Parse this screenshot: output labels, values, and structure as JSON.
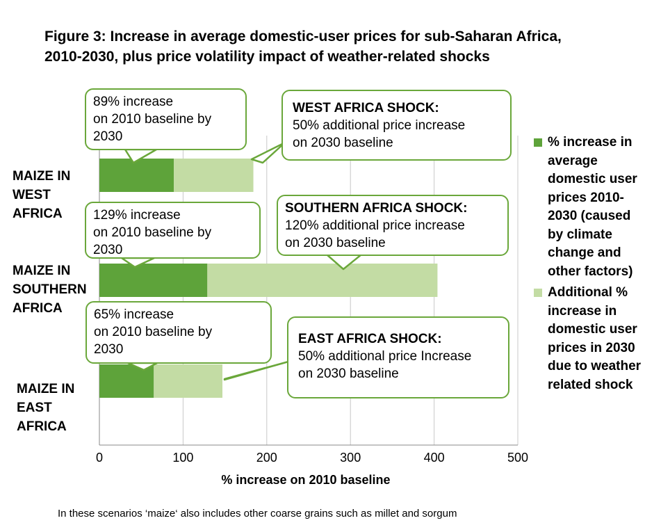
{
  "title": {
    "line1": "Figure 3: Increase in average domestic-user prices for sub-Saharan Africa,",
    "line2": "2010-2030, plus price volatility impact of weather-related shocks"
  },
  "chart_data": {
    "type": "bar",
    "orientation": "horizontal",
    "stacked": true,
    "categories": [
      "MAIZE IN WEST AFRICA",
      "MAIZE IN SOUTHERN AFRICA",
      "MAIZE IN EAST AFRICA"
    ],
    "series": [
      {
        "name": "% increase in average domestic user prices 2010-2030 (caused by climate change and other factors)",
        "color": "#5ea33a",
        "values": [
          89,
          129,
          65
        ]
      },
      {
        "name": "Additional % increase in domestic user prices in 2030 due to weather related shock",
        "color": "#c3dca4",
        "values": [
          95,
          275,
          82
        ]
      }
    ],
    "xlabel": "% increase on 2010 baseline",
    "xlim": [
      0,
      500
    ],
    "xticks": [
      "0",
      "100",
      "200",
      "300",
      "400",
      "500"
    ],
    "grid": true,
    "legend_position": "right"
  },
  "callouts": {
    "west_increase": {
      "l1": "89% increase",
      "l2": "on 2010 baseline by",
      "l3": "2030"
    },
    "west_shock": {
      "heading": "WEST AFRICA SHOCK:",
      "l1": "50% additional price increase",
      "l2": "on 2030 baseline"
    },
    "south_increase": {
      "l1": "129% increase",
      "l2": "on 2010 baseline by",
      "l3": "2030"
    },
    "south_shock": {
      "heading": "SOUTHERN AFRICA SHOCK:",
      "l1": "120% additional price increase",
      "l2": "on 2030 baseline"
    },
    "east_increase": {
      "l1": "65% increase",
      "l2": "on 2010 baseline by",
      "l3": "2030"
    },
    "east_shock": {
      "heading": "EAST AFRICA SHOCK:",
      "l1": "50% additional price Increase",
      "l2": "on 2030 baseline"
    }
  },
  "category_labels": {
    "west": {
      "l1": "MAIZE IN",
      "l2": "WEST",
      "l3": "AFRICA"
    },
    "south": {
      "l1": "MAIZE IN",
      "l2": "SOUTHERN",
      "l3": "AFRICA"
    },
    "east": {
      "l1": "MAIZE IN",
      "l2": "EAST",
      "l3": "AFRICA"
    }
  },
  "legend": {
    "item1": {
      "l1": "% increase in",
      "l2": "average",
      "l3": "domestic user",
      "l4": "prices 2010-",
      "l5": "2030 (caused",
      "l6": "by climate",
      "l7": "change and",
      "l8": "other factors)"
    },
    "item2": {
      "l1": "Additional %",
      "l2": "increase in",
      "l3": "domestic user",
      "l4": "prices in 2030",
      "l5": "due to weather",
      "l6": "related shock"
    }
  },
  "footnote": "In these scenarios ‘maize‘ also includes other coarse grains such as millet and sorgum"
}
